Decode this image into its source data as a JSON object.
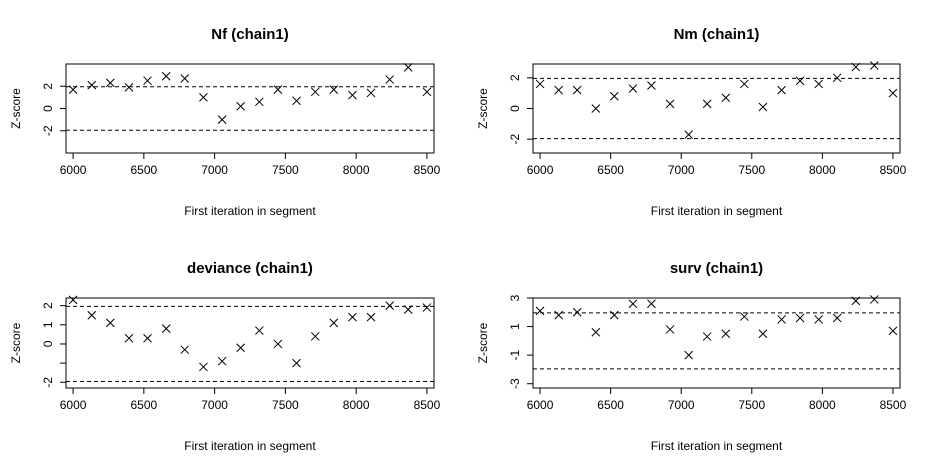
{
  "chart_data": [
    {
      "type": "scatter",
      "title": "Nf (chain1)",
      "xlabel": "First iteration in segment",
      "ylabel": "Z-score",
      "xlim": [
        5950,
        8550
      ],
      "ylim": [
        -4,
        4
      ],
      "xticks": [
        6000,
        6500,
        7000,
        7500,
        8000,
        8500
      ],
      "yticks": [
        -2,
        0,
        2
      ],
      "reference_lines": [
        -1.96,
        1.96
      ],
      "grid": false,
      "marker": "x",
      "x": [
        6000,
        6132,
        6263,
        6395,
        6526,
        6658,
        6789,
        6921,
        7053,
        7184,
        7316,
        7447,
        7579,
        7711,
        7842,
        7974,
        8105,
        8237,
        8368,
        8500
      ],
      "y": [
        1.7,
        2.1,
        2.3,
        1.9,
        2.5,
        2.9,
        2.7,
        1.0,
        -1.0,
        0.2,
        0.6,
        1.7,
        0.7,
        1.5,
        1.7,
        1.2,
        1.4,
        2.6,
        3.7,
        1.5
      ]
    },
    {
      "type": "scatter",
      "title": "Nm (chain1)",
      "xlabel": "First iteration in segment",
      "ylabel": "Z-score",
      "xlim": [
        5950,
        8550
      ],
      "ylim": [
        -2.9,
        2.9
      ],
      "xticks": [
        6000,
        6500,
        7000,
        7500,
        8000,
        8500
      ],
      "yticks": [
        -2,
        0,
        2
      ],
      "reference_lines": [
        -1.96,
        1.96
      ],
      "grid": false,
      "marker": "x",
      "x": [
        6000,
        6132,
        6263,
        6395,
        6526,
        6658,
        6789,
        6921,
        7053,
        7184,
        7316,
        7447,
        7579,
        7711,
        7842,
        7974,
        8105,
        8237,
        8368,
        8500
      ],
      "y": [
        1.6,
        1.2,
        1.2,
        0.0,
        0.8,
        1.3,
        1.5,
        0.3,
        -1.7,
        0.3,
        0.7,
        1.6,
        0.1,
        1.2,
        1.8,
        1.6,
        2.0,
        2.7,
        2.8,
        1.0
      ]
    },
    {
      "type": "scatter",
      "title": "deviance (chain1)",
      "xlabel": "First iteration in segment",
      "ylabel": "Z-score",
      "xlim": [
        5950,
        8550
      ],
      "ylim": [
        -2.3,
        2.4
      ],
      "xticks": [
        6000,
        6500,
        7000,
        7500,
        8000,
        8500
      ],
      "yticks": [
        -2,
        -1,
        0,
        1,
        2
      ],
      "ytick_labels": [
        "-2",
        "",
        "0",
        "1",
        "2"
      ],
      "reference_lines": [
        -1.96,
        1.96
      ],
      "grid": false,
      "marker": "x",
      "x": [
        6000,
        6132,
        6263,
        6395,
        6526,
        6658,
        6789,
        6921,
        7053,
        7184,
        7316,
        7447,
        7579,
        7711,
        7842,
        7974,
        8105,
        8237,
        8368,
        8500
      ],
      "y": [
        2.3,
        1.5,
        1.1,
        0.3,
        0.3,
        0.8,
        -0.3,
        -1.2,
        -0.9,
        -0.2,
        0.7,
        0.0,
        -1.0,
        0.4,
        1.1,
        1.4,
        1.4,
        2.0,
        1.8,
        1.9
      ]
    },
    {
      "type": "scatter",
      "title": "surv (chain1)",
      "xlabel": "First iteration in segment",
      "ylabel": "Z-score",
      "xlim": [
        5950,
        8550
      ],
      "ylim": [
        -3.3,
        3.0
      ],
      "xticks": [
        6000,
        6500,
        7000,
        7500,
        8000,
        8500
      ],
      "yticks": [
        -3,
        -1,
        1,
        3
      ],
      "reference_lines": [
        -1.96,
        1.96
      ],
      "grid": false,
      "marker": "x",
      "x": [
        6000,
        6132,
        6263,
        6395,
        6526,
        6658,
        6789,
        6921,
        7053,
        7184,
        7316,
        7447,
        7579,
        7711,
        7842,
        7974,
        8105,
        8237,
        8368,
        8500
      ],
      "y": [
        2.1,
        1.8,
        2.0,
        0.6,
        1.8,
        2.6,
        2.6,
        0.8,
        -1.0,
        0.3,
        0.5,
        1.7,
        0.5,
        1.5,
        1.6,
        1.5,
        1.6,
        2.8,
        2.9,
        0.7
      ]
    }
  ]
}
